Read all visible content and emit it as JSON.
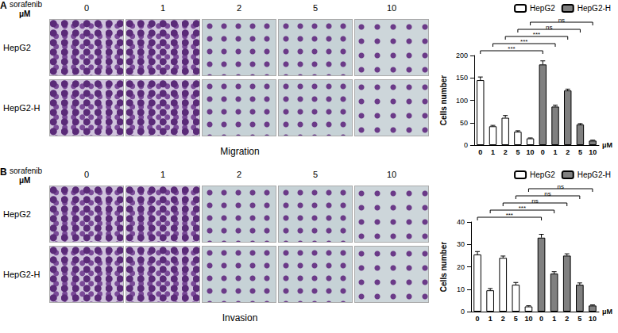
{
  "image_panels": [
    {
      "label": "A",
      "drug": "sorafenib",
      "unit": "μM",
      "doses": [
        "0",
        "1",
        "2",
        "5",
        "10"
      ],
      "rows": [
        "HepG2",
        "HepG2-H"
      ],
      "caption": "Migration"
    },
    {
      "label": "B",
      "drug": "sorafenib",
      "unit": "μM",
      "doses": [
        "0",
        "1",
        "2",
        "5",
        "10"
      ],
      "rows": [
        "HepG2",
        "HepG2-H"
      ],
      "caption": "Invasion"
    }
  ],
  "chart_data": [
    {
      "type": "bar",
      "categories": [
        "0",
        "1",
        "2",
        "5",
        "10",
        "0",
        "1",
        "2",
        "5",
        "10"
      ],
      "series": [
        {
          "name": "HepG2",
          "color": "#ffffff",
          "values": [
            145,
            42,
            61,
            30,
            15,
            null,
            null,
            null,
            null,
            null
          ],
          "errors": [
            7,
            2,
            5,
            2,
            1,
            null,
            null,
            null,
            null,
            null
          ]
        },
        {
          "name": "HepG2-H",
          "color": "#808080",
          "values": [
            null,
            null,
            null,
            null,
            null,
            180,
            86,
            122,
            46,
            10
          ],
          "errors": [
            null,
            null,
            null,
            null,
            null,
            8,
            3,
            3,
            2,
            1
          ]
        }
      ],
      "ylim": [
        0,
        200
      ],
      "yticks": [
        0,
        50,
        100,
        150,
        200
      ],
      "y_label": "Cells number",
      "x_unit": "μM",
      "legend": "upper right",
      "grid": false,
      "annotations": [
        {
          "from": 0,
          "to": 5,
          "label": "***"
        },
        {
          "from": 1,
          "to": 6,
          "label": "***"
        },
        {
          "from": 2,
          "to": 7,
          "label": "***"
        },
        {
          "from": 3,
          "to": 8,
          "label": "ns"
        },
        {
          "from": 4,
          "to": 9,
          "label": "ns"
        }
      ]
    },
    {
      "type": "bar",
      "categories": [
        "0",
        "1",
        "2",
        "5",
        "10",
        "0",
        "1",
        "2",
        "5",
        "10"
      ],
      "series": [
        {
          "name": "HepG2",
          "color": "#ffffff",
          "values": [
            25.5,
            9.5,
            24,
            12,
            2.3,
            null,
            null,
            null,
            null,
            null
          ],
          "errors": [
            1.3,
            0.8,
            0.8,
            1,
            0.3,
            null,
            null,
            null,
            null,
            null
          ]
        },
        {
          "name": "HepG2-H",
          "color": "#808080",
          "values": [
            null,
            null,
            null,
            null,
            null,
            33,
            17,
            25,
            12,
            2.7
          ],
          "errors": [
            null,
            null,
            null,
            null,
            null,
            1.5,
            0.8,
            0.8,
            0.8,
            0.3
          ]
        }
      ],
      "ylim": [
        0,
        40
      ],
      "yticks": [
        0,
        10,
        20,
        30,
        40
      ],
      "y_label": "Cells number",
      "x_unit": "μM",
      "legend": "upper right",
      "grid": false,
      "annotations": [
        {
          "from": 0,
          "to": 5,
          "label": "***"
        },
        {
          "from": 1,
          "to": 6,
          "label": "***"
        },
        {
          "from": 2,
          "to": 7,
          "label": "ns"
        },
        {
          "from": 3,
          "to": 8,
          "label": "ns"
        },
        {
          "from": 4,
          "to": 9,
          "label": "ns"
        }
      ]
    }
  ]
}
